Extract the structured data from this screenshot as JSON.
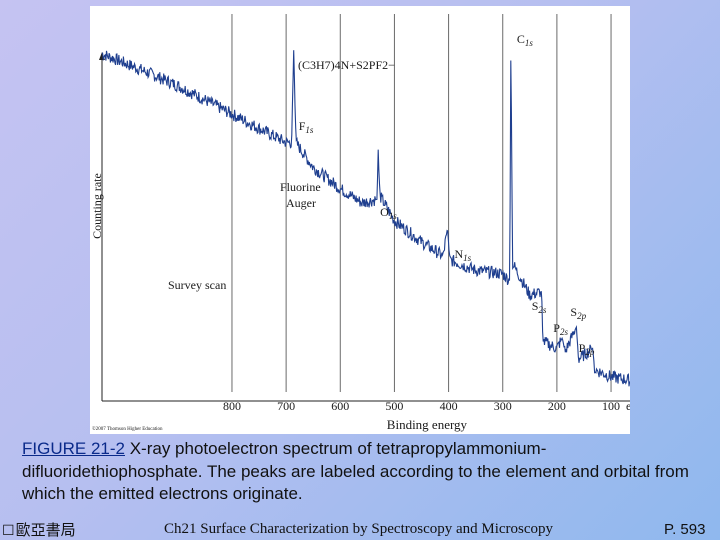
{
  "figure": {
    "compound_formula": "(C3H7)4N+S2PF2−",
    "y_axis_label": "Counting rate",
    "x_axis_label": "Binding energy",
    "x_unit": "eV",
    "scan_label": "Survey scan",
    "copyright": "©2007 Thomson Higher Education",
    "peaks": [
      {
        "el": "C",
        "orb": "1s",
        "energy": 285
      },
      {
        "el": "F",
        "orb": "1s",
        "energy": 686
      },
      {
        "el": "O",
        "orb": "1s",
        "energy": 532
      },
      {
        "el": "N",
        "orb": "1s",
        "energy": 402
      },
      {
        "el": "S",
        "orb": "2s",
        "energy": 228
      },
      {
        "el": "S",
        "orb": "2p",
        "energy": 164
      },
      {
        "el": "P",
        "orb": "2s",
        "energy": 190
      },
      {
        "el": "P",
        "orb": "2p",
        "energy": 134
      }
    ],
    "auger_label_line1": "Fluorine",
    "auger_label_line2": "Auger"
  },
  "chart_data": {
    "type": "line",
    "title": "",
    "xlabel": "Binding energy",
    "ylabel": "Counting rate",
    "x_unit": "eV",
    "x_reversed": true,
    "xlim": [
      1040,
      65
    ],
    "x_ticks": [
      800,
      700,
      600,
      500,
      400,
      300,
      200,
      100
    ],
    "y_ticks_shown": false,
    "grid_x": true,
    "series": [
      {
        "values_relative": [
          [
            1040,
            0.95
          ],
          [
            960,
            0.9
          ],
          [
            900,
            0.86
          ],
          [
            850,
            0.82
          ],
          [
            800,
            0.78
          ],
          [
            750,
            0.74
          ],
          [
            700,
            0.7
          ],
          [
            690,
            0.7
          ],
          [
            686,
            0.96
          ],
          [
            682,
            0.7
          ],
          [
            650,
            0.63
          ],
          [
            600,
            0.57
          ],
          [
            560,
            0.53
          ],
          [
            532,
            0.54
          ],
          [
            530,
            0.68
          ],
          [
            527,
            0.55
          ],
          [
            500,
            0.48
          ],
          [
            450,
            0.42
          ],
          [
            410,
            0.38
          ],
          [
            402,
            0.46
          ],
          [
            398,
            0.37
          ],
          [
            350,
            0.34
          ],
          [
            300,
            0.33
          ],
          [
            287,
            0.31
          ],
          [
            285,
            1.0
          ],
          [
            282,
            0.36
          ],
          [
            250,
            0.27
          ],
          [
            228,
            0.28
          ],
          [
            226,
            0.14
          ],
          [
            200,
            0.12
          ],
          [
            190,
            0.15
          ],
          [
            185,
            0.11
          ],
          [
            164,
            0.18
          ],
          [
            160,
            0.09
          ],
          [
            134,
            0.12
          ],
          [
            130,
            0.06
          ],
          [
            100,
            0.04
          ],
          [
            65,
            0.03
          ]
        ]
      }
    ]
  },
  "caption": {
    "label": "FIGURE 21-2",
    "text": " X-ray photoelectron spectrum of tetrapropylammonium-difluoridethiophosphate. The peaks are labeled according to the element and orbital from which the emitted electrons originate."
  },
  "footer": {
    "publisher": "歐亞書局",
    "course": "Ch21 Surface Characterization by Spectroscopy and Microscopy",
    "page": "P. 593"
  }
}
